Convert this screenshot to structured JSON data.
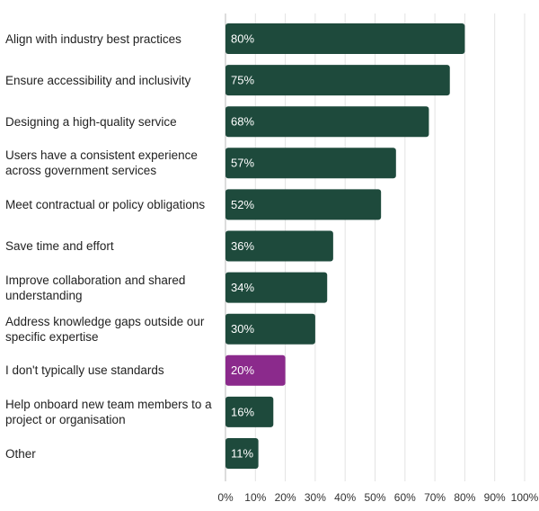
{
  "chart_data": {
    "type": "hbar",
    "categories": [
      "Align with industry best practices",
      "Ensure accessibility and inclusivity",
      "Designing a high-quality service",
      "Users have a consistent experience across government services",
      "Meet contractual or policy obligations",
      "Save time and effort",
      "Improve collaboration and shared understanding",
      "Address knowledge gaps outside our specific expertise",
      "I don't typically use standards",
      "Help onboard new team members to a project or organisation",
      "Other"
    ],
    "values": [
      80,
      75,
      68,
      57,
      52,
      36,
      34,
      30,
      20,
      16,
      11
    ],
    "value_labels": [
      "80%",
      "75%",
      "68%",
      "57%",
      "52%",
      "36%",
      "34%",
      "30%",
      "20%",
      "16%",
      "11%"
    ],
    "colors": [
      "#1e4a3c",
      "#1e4a3c",
      "#1e4a3c",
      "#1e4a3c",
      "#1e4a3c",
      "#1e4a3c",
      "#1e4a3c",
      "#1e4a3c",
      "#8b2a8c",
      "#1e4a3c",
      "#1e4a3c"
    ],
    "xlim": [
      0,
      100
    ],
    "xticks": [
      {
        "value": 0,
        "label": "0%"
      },
      {
        "value": 10,
        "label": "10%"
      },
      {
        "value": 20,
        "label": "20%"
      },
      {
        "value": 30,
        "label": "30%"
      },
      {
        "value": 40,
        "label": "40%"
      },
      {
        "value": 50,
        "label": "50%"
      },
      {
        "value": 60,
        "label": "60%"
      },
      {
        "value": 70,
        "label": "70%"
      },
      {
        "value": 80,
        "label": "80%"
      },
      {
        "value": 90,
        "label": "90%"
      },
      {
        "value": 100,
        "label": "100%"
      }
    ],
    "grid": true
  }
}
